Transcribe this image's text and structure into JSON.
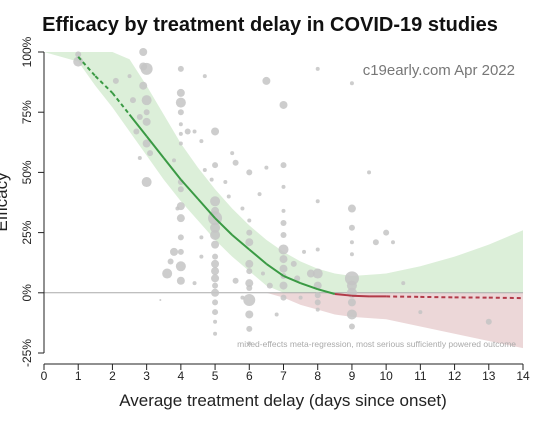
{
  "chart_data": {
    "type": "scatter",
    "title": "Efficacy by treatment delay in COVID-19 studies",
    "xlabel": "Average treatment delay (days since onset)",
    "ylabel": "Efficacy",
    "watermark": "c19early.com Apr 2022",
    "footnote": "mixed-effects meta-regression, most serious sufficiently powered outcome",
    "xlim": [
      0,
      14
    ],
    "ylim": [
      -25,
      100
    ],
    "x_ticks": [
      "0",
      "1",
      "2",
      "3",
      "4",
      "5",
      "6",
      "7",
      "8",
      "9",
      "10",
      "11",
      "12",
      "13",
      "14"
    ],
    "y_ticks": [
      {
        "value": -25,
        "label": "-25%"
      },
      {
        "value": 0,
        "label": "0%"
      },
      {
        "value": 25,
        "label": "25%"
      },
      {
        "value": 50,
        "label": "50%"
      },
      {
        "value": 75,
        "label": "75%"
      },
      {
        "value": 100,
        "label": "100%"
      }
    ],
    "colors": {
      "fit_positive": "#3a9a44",
      "fit_negative": "#b23a48",
      "band_positive": "#dcefd9",
      "band_negative": "#ecd7d8",
      "points": "#c4c4c4",
      "zero_line": "#aaaaaa"
    },
    "fit_line": [
      {
        "x": 1.0,
        "y": 98
      },
      {
        "x": 1.5,
        "y": 90
      },
      {
        "x": 2.0,
        "y": 83
      },
      {
        "x": 2.5,
        "y": 74
      },
      {
        "x": 3.0,
        "y": 65
      },
      {
        "x": 3.5,
        "y": 56
      },
      {
        "x": 4.0,
        "y": 47
      },
      {
        "x": 4.5,
        "y": 39
      },
      {
        "x": 5.0,
        "y": 31
      },
      {
        "x": 5.5,
        "y": 24
      },
      {
        "x": 6.0,
        "y": 18
      },
      {
        "x": 6.5,
        "y": 12
      },
      {
        "x": 7.0,
        "y": 7
      },
      {
        "x": 7.5,
        "y": 4
      },
      {
        "x": 8.0,
        "y": 1.5
      },
      {
        "x": 8.5,
        "y": -0.5
      },
      {
        "x": 9.0,
        "y": -1.2
      },
      {
        "x": 9.5,
        "y": -1.5
      },
      {
        "x": 10.0,
        "y": -1.5
      },
      {
        "x": 11.0,
        "y": -1.7
      },
      {
        "x": 12.0,
        "y": -1.9
      },
      {
        "x": 13.0,
        "y": -2.0
      },
      {
        "x": 14.0,
        "y": -2.2
      }
    ],
    "solid_range": [
      2.5,
      10.0
    ],
    "ci_band": [
      {
        "x": 0.0,
        "upper": 100,
        "lower": 100
      },
      {
        "x": 1.0,
        "upper": 100,
        "lower": 96
      },
      {
        "x": 1.5,
        "upper": 100,
        "lower": 86
      },
      {
        "x": 2.0,
        "upper": 100,
        "lower": 77
      },
      {
        "x": 2.5,
        "upper": 97,
        "lower": 67
      },
      {
        "x": 3.0,
        "upper": 86,
        "lower": 57
      },
      {
        "x": 3.5,
        "upper": 74,
        "lower": 47
      },
      {
        "x": 4.0,
        "upper": 62,
        "lower": 38
      },
      {
        "x": 4.5,
        "upper": 52,
        "lower": 30
      },
      {
        "x": 5.0,
        "upper": 43,
        "lower": 22
      },
      {
        "x": 5.5,
        "upper": 35,
        "lower": 15
      },
      {
        "x": 6.0,
        "upper": 28,
        "lower": 9
      },
      {
        "x": 6.5,
        "upper": 22,
        "lower": 3
      },
      {
        "x": 7.0,
        "upper": 17,
        "lower": -2
      },
      {
        "x": 7.5,
        "upper": 13,
        "lower": -5
      },
      {
        "x": 8.0,
        "upper": 10,
        "lower": -7
      },
      {
        "x": 8.5,
        "upper": 8,
        "lower": -9
      },
      {
        "x": 9.0,
        "upper": 7,
        "lower": -10
      },
      {
        "x": 10.0,
        "upper": 8,
        "lower": -11
      },
      {
        "x": 11.0,
        "upper": 11,
        "lower": -14
      },
      {
        "x": 12.0,
        "upper": 15,
        "lower": -17
      },
      {
        "x": 13.0,
        "upper": 20,
        "lower": -20
      },
      {
        "x": 14.0,
        "upper": 26,
        "lower": -23
      }
    ],
    "points": [
      {
        "x": 1.0,
        "y": 96,
        "r": 5
      },
      {
        "x": 1.0,
        "y": 99,
        "r": 3
      },
      {
        "x": 2.1,
        "y": 88,
        "r": 3
      },
      {
        "x": 2.5,
        "y": 90,
        "r": 2
      },
      {
        "x": 2.6,
        "y": 80,
        "r": 3
      },
      {
        "x": 2.7,
        "y": 67,
        "r": 3
      },
      {
        "x": 2.8,
        "y": 56,
        "r": 2
      },
      {
        "x": 2.8,
        "y": 73,
        "r": 3
      },
      {
        "x": 2.9,
        "y": 100,
        "r": 4
      },
      {
        "x": 2.9,
        "y": 94,
        "r": 4
      },
      {
        "x": 2.9,
        "y": 86,
        "r": 4
      },
      {
        "x": 3.0,
        "y": 93,
        "r": 6
      },
      {
        "x": 3.0,
        "y": 80,
        "r": 5
      },
      {
        "x": 3.0,
        "y": 75,
        "r": 3
      },
      {
        "x": 3.0,
        "y": 71,
        "r": 4
      },
      {
        "x": 3.0,
        "y": 62,
        "r": 4
      },
      {
        "x": 3.0,
        "y": 46,
        "r": 5
      },
      {
        "x": 3.1,
        "y": 58,
        "r": 3
      },
      {
        "x": 3.8,
        "y": 55,
        "r": 2
      },
      {
        "x": 3.9,
        "y": 35,
        "r": 2
      },
      {
        "x": 3.8,
        "y": 17,
        "r": 4
      },
      {
        "x": 3.7,
        "y": 13,
        "r": 3
      },
      {
        "x": 3.6,
        "y": 8,
        "r": 5
      },
      {
        "x": 3.4,
        "y": -3,
        "r": 1
      },
      {
        "x": 4.0,
        "y": 93,
        "r": 3
      },
      {
        "x": 4.0,
        "y": 83,
        "r": 4
      },
      {
        "x": 4.0,
        "y": 79,
        "r": 5
      },
      {
        "x": 4.0,
        "y": 75,
        "r": 3
      },
      {
        "x": 4.0,
        "y": 70,
        "r": 2
      },
      {
        "x": 4.0,
        "y": 66,
        "r": 2
      },
      {
        "x": 4.0,
        "y": 62,
        "r": 2
      },
      {
        "x": 4.0,
        "y": 46,
        "r": 3
      },
      {
        "x": 4.0,
        "y": 43,
        "r": 3
      },
      {
        "x": 4.0,
        "y": 36,
        "r": 4
      },
      {
        "x": 4.0,
        "y": 31,
        "r": 4
      },
      {
        "x": 4.0,
        "y": 23,
        "r": 3
      },
      {
        "x": 4.0,
        "y": 17,
        "r": 3
      },
      {
        "x": 4.0,
        "y": 11,
        "r": 5
      },
      {
        "x": 4.0,
        "y": 5,
        "r": 4
      },
      {
        "x": 4.2,
        "y": 67,
        "r": 3
      },
      {
        "x": 4.4,
        "y": 67,
        "r": 2
      },
      {
        "x": 4.6,
        "y": 63,
        "r": 2
      },
      {
        "x": 4.7,
        "y": 51,
        "r": 2
      },
      {
        "x": 4.6,
        "y": 15,
        "r": 2
      },
      {
        "x": 4.6,
        "y": 23,
        "r": 2
      },
      {
        "x": 4.4,
        "y": 4,
        "r": 2
      },
      {
        "x": 4.9,
        "y": 47,
        "r": 2
      },
      {
        "x": 4.7,
        "y": 90,
        "r": 2
      },
      {
        "x": 5.0,
        "y": 67,
        "r": 4
      },
      {
        "x": 5.0,
        "y": 53,
        "r": 3
      },
      {
        "x": 5.0,
        "y": 38,
        "r": 5
      },
      {
        "x": 5.0,
        "y": 34,
        "r": 4
      },
      {
        "x": 5.0,
        "y": 31,
        "r": 7
      },
      {
        "x": 5.0,
        "y": 27,
        "r": 5
      },
      {
        "x": 5.0,
        "y": 24,
        "r": 5
      },
      {
        "x": 5.0,
        "y": 20,
        "r": 4
      },
      {
        "x": 5.0,
        "y": 15,
        "r": 3
      },
      {
        "x": 5.0,
        "y": 12,
        "r": 4
      },
      {
        "x": 5.0,
        "y": 9,
        "r": 4
      },
      {
        "x": 5.0,
        "y": 6,
        "r": 4
      },
      {
        "x": 5.0,
        "y": 3,
        "r": 3
      },
      {
        "x": 5.0,
        "y": 0,
        "r": 4
      },
      {
        "x": 5.0,
        "y": -4,
        "r": 3
      },
      {
        "x": 5.0,
        "y": -8,
        "r": 3
      },
      {
        "x": 5.0,
        "y": -12,
        "r": 2
      },
      {
        "x": 5.0,
        "y": -17,
        "r": 2
      },
      {
        "x": 5.5,
        "y": 58,
        "r": 2
      },
      {
        "x": 5.6,
        "y": 54,
        "r": 3
      },
      {
        "x": 5.3,
        "y": 46,
        "r": 2
      },
      {
        "x": 5.4,
        "y": 40,
        "r": 2
      },
      {
        "x": 5.8,
        "y": 35,
        "r": 2
      },
      {
        "x": 5.6,
        "y": 5,
        "r": 3
      },
      {
        "x": 5.8,
        "y": -2,
        "r": 2
      },
      {
        "x": 6.0,
        "y": 50,
        "r": 3
      },
      {
        "x": 6.0,
        "y": 30,
        "r": 2
      },
      {
        "x": 6.0,
        "y": 25,
        "r": 3
      },
      {
        "x": 6.0,
        "y": 21,
        "r": 4
      },
      {
        "x": 6.0,
        "y": 12,
        "r": 4
      },
      {
        "x": 6.0,
        "y": 9,
        "r": 3
      },
      {
        "x": 6.0,
        "y": 4,
        "r": 4
      },
      {
        "x": 6.0,
        "y": 2,
        "r": 3
      },
      {
        "x": 6.0,
        "y": -3,
        "r": 6
      },
      {
        "x": 6.0,
        "y": -9,
        "r": 4
      },
      {
        "x": 6.0,
        "y": -15,
        "r": 3
      },
      {
        "x": 6.0,
        "y": -21,
        "r": 2
      },
      {
        "x": 6.5,
        "y": 88,
        "r": 4
      },
      {
        "x": 6.5,
        "y": 52,
        "r": 2
      },
      {
        "x": 6.3,
        "y": 41,
        "r": 2
      },
      {
        "x": 6.4,
        "y": 8,
        "r": 2
      },
      {
        "x": 6.6,
        "y": 3,
        "r": 3
      },
      {
        "x": 6.8,
        "y": -9,
        "r": 2
      },
      {
        "x": 7.0,
        "y": 78,
        "r": 4
      },
      {
        "x": 7.0,
        "y": 53,
        "r": 3
      },
      {
        "x": 7.0,
        "y": 44,
        "r": 2
      },
      {
        "x": 7.0,
        "y": 34,
        "r": 2
      },
      {
        "x": 7.0,
        "y": 29,
        "r": 3
      },
      {
        "x": 7.0,
        "y": 24,
        "r": 3
      },
      {
        "x": 7.0,
        "y": 18,
        "r": 5
      },
      {
        "x": 7.0,
        "y": 14,
        "r": 4
      },
      {
        "x": 7.0,
        "y": 10,
        "r": 4
      },
      {
        "x": 7.0,
        "y": 7,
        "r": 3
      },
      {
        "x": 7.0,
        "y": 3,
        "r": 4
      },
      {
        "x": 7.0,
        "y": -2,
        "r": 3
      },
      {
        "x": 7.3,
        "y": 12,
        "r": 3
      },
      {
        "x": 7.4,
        "y": 6,
        "r": 3
      },
      {
        "x": 7.5,
        "y": -2,
        "r": 2
      },
      {
        "x": 7.6,
        "y": 17,
        "r": 2
      },
      {
        "x": 7.8,
        "y": 8,
        "r": 4
      },
      {
        "x": 8.0,
        "y": 93,
        "r": 2
      },
      {
        "x": 8.0,
        "y": 38,
        "r": 2
      },
      {
        "x": 8.0,
        "y": 18,
        "r": 2
      },
      {
        "x": 8.0,
        "y": 8,
        "r": 5
      },
      {
        "x": 8.0,
        "y": 3,
        "r": 4
      },
      {
        "x": 8.0,
        "y": -1,
        "r": 3
      },
      {
        "x": 8.0,
        "y": -4,
        "r": 3
      },
      {
        "x": 8.0,
        "y": -7,
        "r": 2
      },
      {
        "x": 9.0,
        "y": 87,
        "r": 2
      },
      {
        "x": 9.0,
        "y": 35,
        "r": 4
      },
      {
        "x": 9.0,
        "y": 27,
        "r": 3
      },
      {
        "x": 9.0,
        "y": 21,
        "r": 2
      },
      {
        "x": 9.0,
        "y": 16,
        "r": 2
      },
      {
        "x": 9.0,
        "y": 6,
        "r": 7
      },
      {
        "x": 9.0,
        "y": 3,
        "r": 5
      },
      {
        "x": 9.0,
        "y": 0,
        "r": 5
      },
      {
        "x": 9.0,
        "y": -4,
        "r": 4
      },
      {
        "x": 9.0,
        "y": -9,
        "r": 5
      },
      {
        "x": 9.0,
        "y": -14,
        "r": 3
      },
      {
        "x": 9.5,
        "y": 50,
        "r": 2
      },
      {
        "x": 9.7,
        "y": 21,
        "r": 3
      },
      {
        "x": 10.0,
        "y": 25,
        "r": 3
      },
      {
        "x": 10.2,
        "y": 21,
        "r": 2
      },
      {
        "x": 10.5,
        "y": 4,
        "r": 2
      },
      {
        "x": 11.0,
        "y": -8,
        "r": 2
      },
      {
        "x": 13.0,
        "y": -12,
        "r": 3
      }
    ]
  }
}
